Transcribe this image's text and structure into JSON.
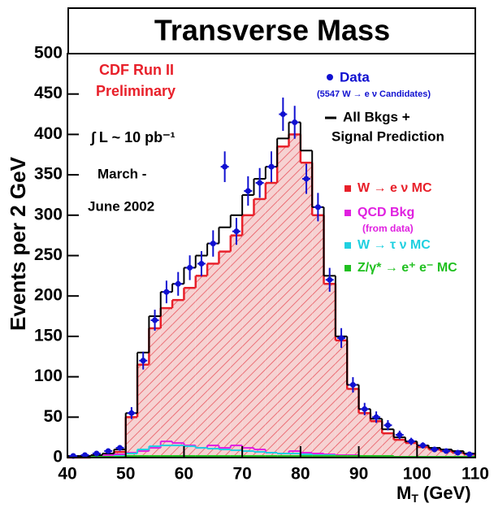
{
  "chart_data": {
    "type": "histogram",
    "title": "Transverse Mass",
    "ylabel": "Events per 2 GeV",
    "xlabel": {
      "main": "M",
      "sub": "T",
      "unit": "(GeV)"
    },
    "bins": [
      40,
      42,
      44,
      46,
      48,
      50,
      52,
      54,
      56,
      58,
      60,
      62,
      64,
      66,
      68,
      70,
      72,
      74,
      76,
      78,
      80,
      82,
      84,
      86,
      88,
      90,
      92,
      94,
      96,
      98,
      100,
      102,
      104,
      106,
      108,
      110
    ],
    "series": [
      {
        "name": "W → e ν MC",
        "color": "#e8202a",
        "fill": true,
        "values": [
          0,
          0,
          1,
          3,
          7,
          50,
          115,
          160,
          185,
          195,
          210,
          225,
          240,
          255,
          275,
          300,
          320,
          340,
          385,
          400,
          365,
          300,
          215,
          145,
          85,
          55,
          45,
          30,
          22,
          18,
          13,
          10,
          8,
          6,
          4
        ]
      },
      {
        "name": "QCD Bkg",
        "note": "(from data)",
        "color": "#e020e0",
        "values": [
          1,
          1,
          2,
          3,
          4,
          6,
          8,
          12,
          20,
          18,
          15,
          12,
          15,
          12,
          15,
          12,
          10,
          6,
          5,
          8,
          6,
          5,
          4,
          3,
          3,
          2,
          2,
          2,
          1,
          1,
          1,
          1,
          1,
          1,
          1
        ]
      },
      {
        "name": "W → τ ν MC",
        "color": "#20d0e0",
        "values": [
          0,
          0,
          1,
          1,
          2,
          5,
          10,
          14,
          15,
          15,
          14,
          12,
          11,
          10,
          9,
          8,
          7,
          6,
          5,
          5,
          4,
          3,
          3,
          2,
          2,
          1,
          1,
          1,
          1,
          1,
          0,
          0,
          0,
          0,
          0
        ]
      },
      {
        "name": "Z/γ* → e⁺ e⁻ MC",
        "color": "#20c020",
        "values": [
          1,
          1,
          1,
          1,
          1,
          2,
          2,
          2,
          2,
          2,
          2,
          2,
          2,
          2,
          2,
          2,
          2,
          2,
          2,
          2,
          2,
          2,
          2,
          2,
          2,
          2,
          2,
          2,
          1,
          1,
          1,
          1,
          1,
          1,
          1
        ]
      },
      {
        "name_lines": [
          "All Bkgs +",
          "Signal Prediction"
        ],
        "color": "#000000",
        "values": [
          2,
          2,
          3,
          5,
          10,
          55,
          130,
          175,
          205,
          215,
          235,
          250,
          265,
          285,
          300,
          325,
          345,
          360,
          395,
          415,
          380,
          310,
          225,
          150,
          90,
          60,
          48,
          35,
          25,
          20,
          15,
          12,
          10,
          8,
          5
        ]
      }
    ],
    "data_points": {
      "name": "Data",
      "note": "(5547 W → e ν Candidates)",
      "color": "#1010d0",
      "x": [
        41,
        43,
        45,
        47,
        49,
        51,
        53,
        55,
        57,
        59,
        61,
        63,
        65,
        67,
        69,
        71,
        73,
        75,
        77,
        79,
        81,
        83,
        85,
        87,
        89,
        91,
        93,
        95,
        97,
        99,
        101,
        103,
        105,
        107,
        109
      ],
      "values": [
        2,
        3,
        5,
        8,
        12,
        55,
        120,
        170,
        205,
        215,
        235,
        240,
        265,
        360,
        280,
        330,
        340,
        360,
        425,
        415,
        345,
        310,
        220,
        148,
        90,
        60,
        50,
        40,
        28,
        20,
        15,
        10,
        8,
        6,
        4
      ],
      "errors": [
        1.4,
        1.7,
        2.2,
        2.8,
        3.5,
        7.4,
        11,
        13,
        14,
        14.7,
        15.3,
        15.5,
        16.3,
        19,
        16.7,
        18.2,
        18.4,
        19,
        20.6,
        20.4,
        18.6,
        17.6,
        14.8,
        12.2,
        9.5,
        7.7,
        7.1,
        6.3,
        5.3,
        4.5,
        3.9,
        3.2,
        2.8,
        2.4,
        2
      ]
    },
    "annotations": [
      "CDF Run II",
      "Preliminary",
      "∫ L ~ 10 pb⁻¹",
      "March -",
      "June 2002"
    ],
    "xlim": [
      40,
      110
    ],
    "xticks": [
      40,
      50,
      60,
      70,
      80,
      90,
      100,
      110
    ],
    "ylim": [
      0,
      500
    ],
    "yticks": [
      0,
      50,
      100,
      150,
      200,
      250,
      300,
      350,
      400,
      450,
      500
    ]
  }
}
